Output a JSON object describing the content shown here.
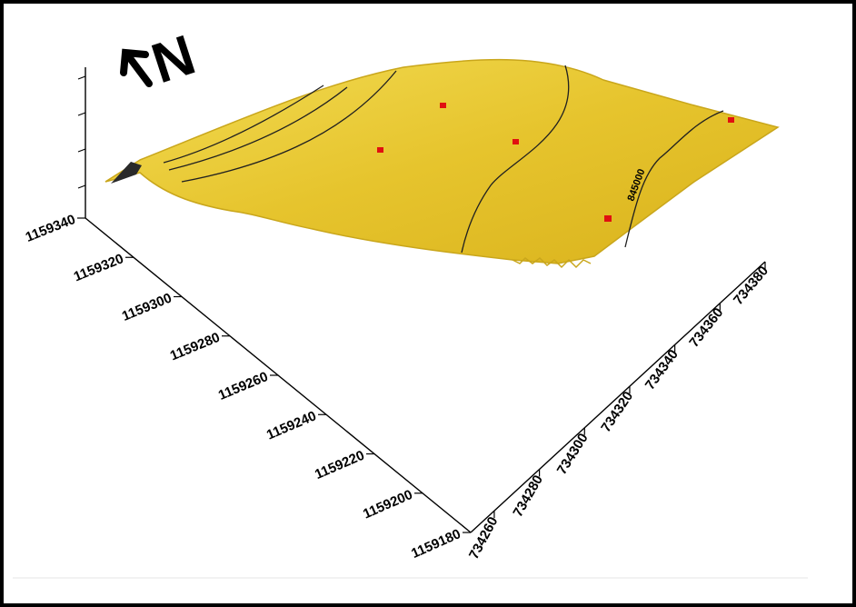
{
  "north": {
    "label": "N"
  },
  "chart_data": {
    "type": "surface",
    "x_axis": {
      "ticks": [
        "734260",
        "734280",
        "734300",
        "734320",
        "734340",
        "734360",
        "734380"
      ]
    },
    "y_axis": {
      "ticks": [
        "1159180",
        "1159200",
        "1159220",
        "1159240",
        "1159260",
        "1159280",
        "1159300",
        "1159320",
        "1159340"
      ]
    },
    "z_axis": {
      "ticks": [
        "",
        "",
        "",
        ""
      ]
    },
    "contour_labels": [
      "845000"
    ],
    "sample_points": 5,
    "colors": {
      "surface": "#e2c028",
      "surface_edge": "#c9a61b",
      "contour": "#202020",
      "points": "#e01010"
    }
  }
}
